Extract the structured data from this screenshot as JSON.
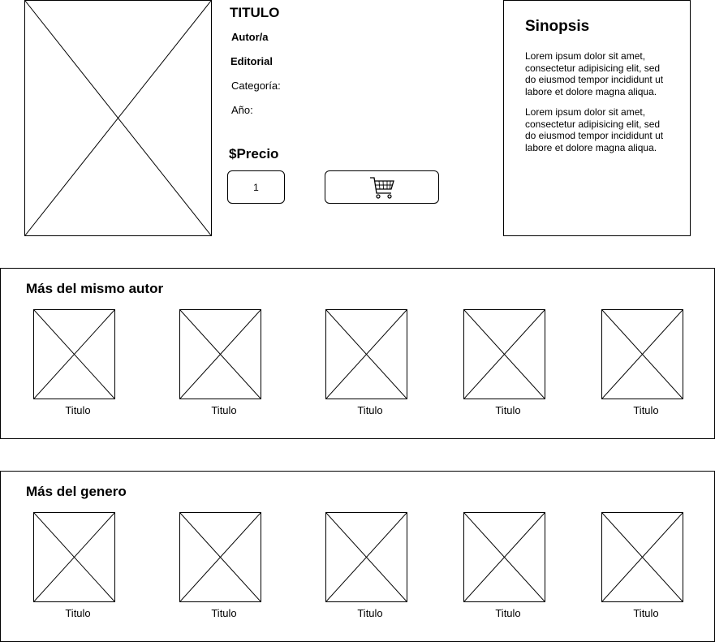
{
  "book": {
    "title": "TITULO",
    "author": "Autor/a",
    "publisher": "Editorial",
    "category": "Categoría:",
    "year": "Año:",
    "price": "$Precio",
    "quantity": "1",
    "cart_icon": "shopping-cart-icon"
  },
  "synopsis": {
    "title": "Sinopsis",
    "paragraphs": [
      "Lorem ipsum dolor sit amet, consectetur adipisicing elit, sed do eiusmod tempor incididunt ut labore et dolore magna aliqua.",
      "Lorem ipsum dolor sit amet, consectetur adipisicing elit, sed do eiusmod tempor incididunt ut labore et dolore magna aliqua."
    ]
  },
  "same_author": {
    "title": "Más del mismo autor",
    "items": [
      {
        "label": "Titulo"
      },
      {
        "label": "Titulo"
      },
      {
        "label": "Titulo"
      },
      {
        "label": "Titulo"
      },
      {
        "label": "Titulo"
      }
    ]
  },
  "same_genre": {
    "title": "Más del genero",
    "items": [
      {
        "label": "Titulo"
      },
      {
        "label": "Titulo"
      },
      {
        "label": "Titulo"
      },
      {
        "label": "Titulo"
      },
      {
        "label": "Titulo"
      }
    ]
  }
}
